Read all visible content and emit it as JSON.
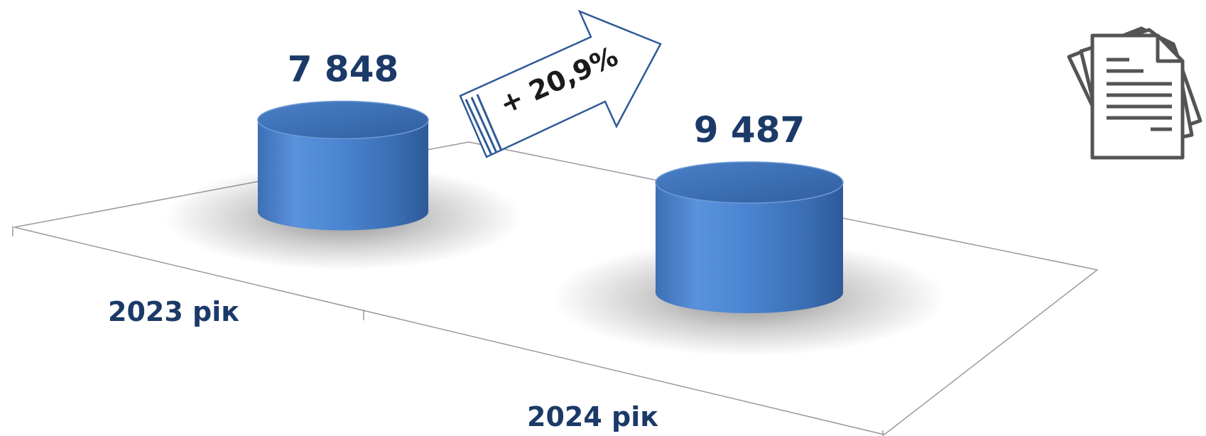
{
  "chart_data": {
    "type": "bar",
    "style": "3d-cylinder",
    "categories": [
      "2023 рік",
      "2024 рік"
    ],
    "values": [
      7848,
      9487
    ],
    "value_labels": [
      "7 848",
      "9 487"
    ],
    "change_label": "+ 20,9%",
    "title": "",
    "xlabel": "",
    "ylabel": "",
    "ylim": [
      0,
      10000
    ],
    "grid": false,
    "legend": "none",
    "bar_color": "#4a82cc",
    "label_color": "#1b3a68",
    "icon": "documents-icon"
  }
}
